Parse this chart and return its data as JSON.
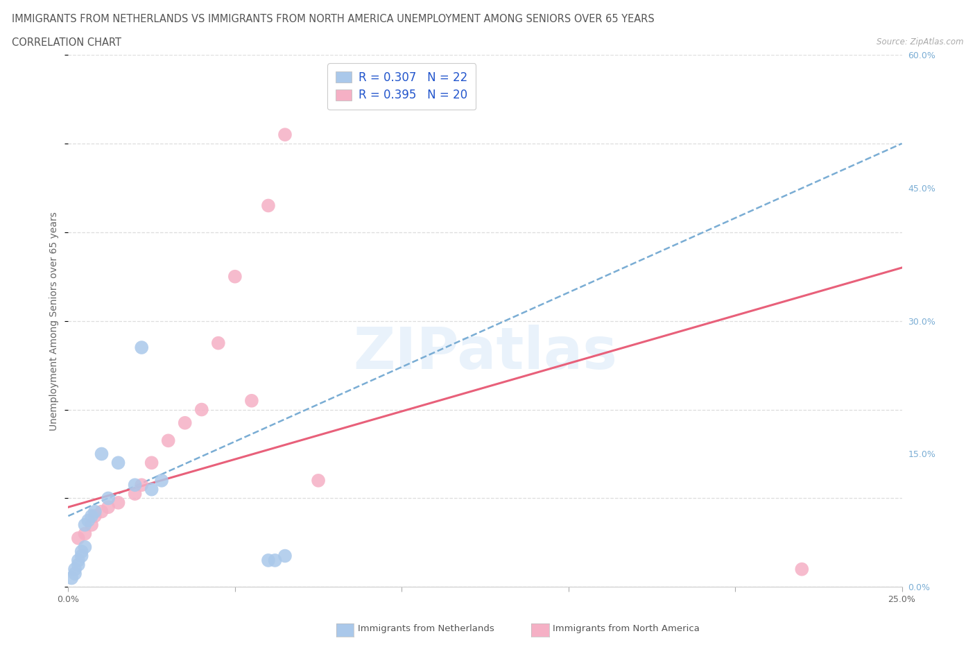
{
  "title_line1": "IMMIGRANTS FROM NETHERLANDS VS IMMIGRANTS FROM NORTH AMERICA UNEMPLOYMENT AMONG SENIORS OVER 65 YEARS",
  "title_line2": "CORRELATION CHART",
  "source_text": "Source: ZipAtlas.com",
  "ylabel": "Unemployment Among Seniors over 65 years",
  "xlim": [
    0.0,
    0.25
  ],
  "ylim": [
    0.0,
    0.6
  ],
  "xtick_positions": [
    0.0,
    0.05,
    0.1,
    0.15,
    0.2,
    0.25
  ],
  "xtick_labels": [
    "0.0%",
    "",
    "",
    "",
    "",
    "25.0%"
  ],
  "ytick_positions": [
    0.0,
    0.15,
    0.3,
    0.45,
    0.6
  ],
  "ytick_labels_right": [
    "0.0%",
    "15.0%",
    "30.0%",
    "45.0%",
    "60.0%"
  ],
  "watermark_text": "ZIPatlas",
  "legend_r1": "R = 0.307",
  "legend_n1": "N = 22",
  "legend_r2": "R = 0.395",
  "legend_n2": "N = 20",
  "color_netherlands": "#aac8ea",
  "color_north_america": "#f5b0c5",
  "color_netherlands_line": "#7aadd4",
  "color_north_america_line": "#e8607a",
  "netherlands_x": [
    0.001,
    0.002,
    0.002,
    0.003,
    0.003,
    0.004,
    0.004,
    0.005,
    0.005,
    0.006,
    0.007,
    0.008,
    0.01,
    0.012,
    0.015,
    0.02,
    0.022,
    0.025,
    0.028,
    0.06,
    0.062,
    0.065
  ],
  "netherlands_y": [
    0.01,
    0.015,
    0.02,
    0.025,
    0.03,
    0.035,
    0.04,
    0.045,
    0.07,
    0.075,
    0.08,
    0.085,
    0.15,
    0.1,
    0.14,
    0.115,
    0.27,
    0.11,
    0.12,
    0.03,
    0.03,
    0.035
  ],
  "north_america_x": [
    0.003,
    0.005,
    0.007,
    0.008,
    0.01,
    0.012,
    0.015,
    0.02,
    0.022,
    0.025,
    0.03,
    0.035,
    0.04,
    0.045,
    0.05,
    0.055,
    0.06,
    0.065,
    0.075,
    0.22
  ],
  "north_america_y": [
    0.055,
    0.06,
    0.07,
    0.08,
    0.085,
    0.09,
    0.095,
    0.105,
    0.115,
    0.14,
    0.165,
    0.185,
    0.2,
    0.275,
    0.35,
    0.21,
    0.43,
    0.51,
    0.12,
    0.02
  ],
  "nl_trend_x0": 0.0,
  "nl_trend_y0": 0.08,
  "nl_trend_x1": 0.25,
  "nl_trend_y1": 0.5,
  "na_trend_x0": 0.0,
  "na_trend_y0": 0.09,
  "na_trend_x1": 0.25,
  "na_trend_y1": 0.36,
  "background_color": "#ffffff",
  "grid_color": "#dddddd",
  "title_color": "#555555",
  "title_fontsize": 10.5,
  "axis_label_fontsize": 10,
  "tick_fontsize": 9,
  "legend_label_netherlands": "Immigrants from Netherlands",
  "legend_label_north_america": "Immigrants from North America"
}
